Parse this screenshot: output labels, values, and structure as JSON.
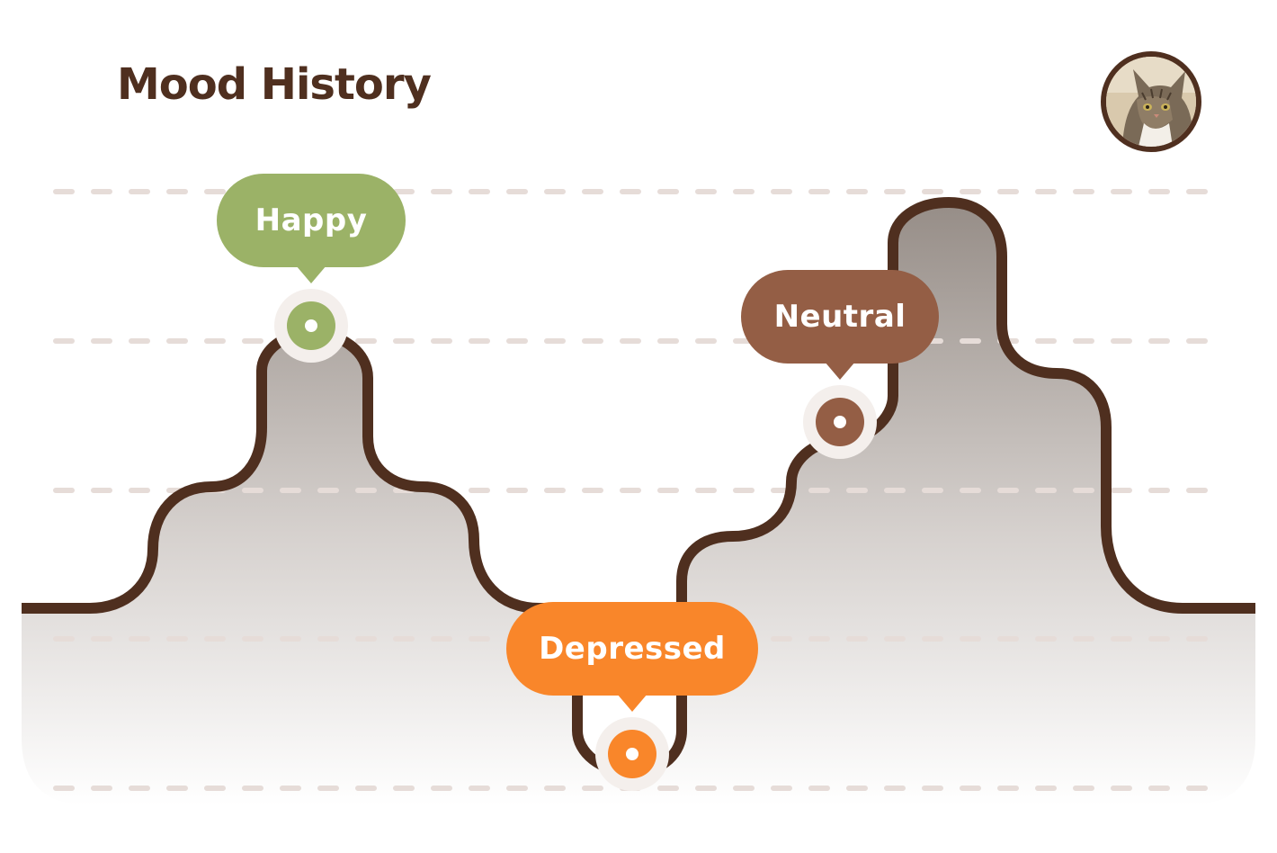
{
  "header": {
    "title": "Mood History"
  },
  "avatar": {
    "icon": "cat-avatar-icon"
  },
  "mood_points": [
    {
      "label": "Happy",
      "color": "#9bb267"
    },
    {
      "label": "Depressed",
      "color": "#f9862a"
    },
    {
      "label": "Neutral",
      "color": "#945e45"
    }
  ],
  "colors": {
    "curve": "#4f2f1f",
    "gridline": "#e6dcd8",
    "happy": "#9bb267",
    "neutral": "#945e45",
    "depressed": "#f9862a"
  }
}
